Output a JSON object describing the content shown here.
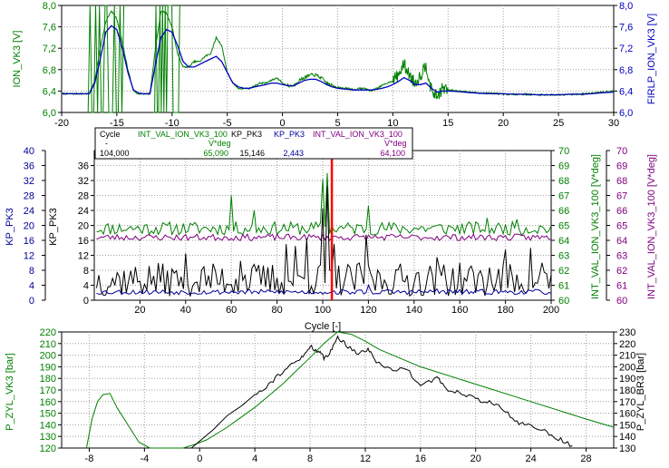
{
  "colors": {
    "ion": "#008000",
    "firlp": "#0000c0",
    "kp_blue": "#000099",
    "kp_black": "#000000",
    "int_val": "#800080",
    "cursor": "#ff0000",
    "p_zyl_vk3": "#008000",
    "p_zyl_br3": "#000000",
    "grid": "#a0a0a0"
  },
  "chart_data": [
    {
      "type": "line",
      "xlim": [
        -20,
        30
      ],
      "xticks": [
        -20,
        -15,
        -10,
        -5,
        0,
        5,
        10,
        15,
        20,
        25,
        30
      ],
      "left_axis": {
        "label": "ION_VK3 [V]",
        "ylim": [
          6.0,
          8.0
        ],
        "ticks": [
          "6,0",
          "6,4",
          "6,8",
          "7,2",
          "7,6",
          "8,0"
        ]
      },
      "right_axis": {
        "label": "FIRLP_ION_VK3 [V]",
        "ylim": [
          6.0,
          8.0
        ],
        "ticks": [
          "6,0",
          "6,4",
          "6,8",
          "7,2",
          "7,6",
          "8,0"
        ]
      },
      "grid": true,
      "series": [
        {
          "name": "ION_VK3",
          "axis": "left",
          "x": [
            -20,
            -17.5,
            -17,
            -16.5,
            -16,
            -15.5,
            -15,
            -14.5,
            -14,
            -13.5,
            -13,
            -12.5,
            -12,
            -11.5,
            -11,
            -10.5,
            -10,
            -9.5,
            -9,
            -8.5,
            -8,
            -7.5,
            -7,
            -6.5,
            -6,
            -5.5,
            -5,
            -4.5,
            -4,
            -3.5,
            -3,
            -2.5,
            -2,
            -1.5,
            -1,
            -0.5,
            0,
            0.5,
            1,
            1.5,
            2,
            2.5,
            3,
            3.5,
            4,
            4.5,
            5,
            5.5,
            6,
            6.5,
            7,
            7.5,
            8,
            8.5,
            9,
            9.5,
            10,
            10.5,
            11,
            11.5,
            12,
            12.5,
            13,
            13.5,
            14,
            14.5,
            15,
            16,
            17,
            18,
            19,
            20,
            21,
            22,
            23,
            24,
            25,
            26,
            27,
            28,
            29,
            30
          ],
          "y": [
            6.35,
            6.35,
            6.6,
            7.2,
            7.7,
            7.9,
            7.75,
            7.3,
            6.8,
            6.4,
            6.35,
            6.35,
            6.35,
            7.2,
            7.9,
            7.85,
            7.6,
            7.1,
            6.85,
            6.85,
            6.95,
            6.95,
            7.05,
            7.1,
            7.4,
            7.25,
            6.75,
            6.55,
            6.45,
            6.45,
            6.45,
            6.5,
            6.55,
            6.55,
            6.6,
            6.65,
            6.55,
            6.5,
            6.5,
            6.6,
            6.65,
            6.7,
            6.7,
            6.65,
            6.55,
            6.5,
            6.48,
            6.45,
            6.45,
            6.42,
            6.45,
            6.45,
            6.4,
            6.45,
            6.5,
            6.55,
            6.6,
            6.7,
            6.9,
            6.7,
            6.55,
            6.7,
            6.9,
            6.4,
            6.3,
            6.45,
            6.42,
            6.4,
            6.38,
            6.36,
            6.36,
            6.34,
            6.34,
            6.34,
            6.33,
            6.33,
            6.33,
            6.34,
            6.34,
            6.36,
            6.38,
            6.4
          ]
        },
        {
          "name": "FIRLP_ION_VK3",
          "axis": "right",
          "x": [
            -20,
            -17.5,
            -17,
            -16.5,
            -16,
            -15.5,
            -15,
            -14.5,
            -14,
            -13.5,
            -13,
            -12.5,
            -12,
            -11.5,
            -11,
            -10.5,
            -10,
            -9.5,
            -9,
            -8.5,
            -8,
            -7.5,
            -7,
            -6.5,
            -6,
            -5.5,
            -5,
            -4.5,
            -4,
            -3.5,
            -3,
            -2.5,
            -2,
            -1.5,
            -1,
            -0.5,
            0,
            0.5,
            1,
            1.5,
            2,
            2.5,
            3,
            3.5,
            4,
            4.5,
            5,
            5.5,
            6,
            6.5,
            7,
            7.5,
            8,
            8.5,
            9,
            9.5,
            10,
            10.5,
            11,
            11.5,
            12,
            12.5,
            13,
            13.5,
            14,
            14.5,
            15,
            16,
            17,
            18,
            19,
            20,
            21,
            22,
            23,
            24,
            25,
            26,
            27,
            28,
            29,
            30
          ],
          "y": [
            6.35,
            6.35,
            6.55,
            7.0,
            7.5,
            7.62,
            7.55,
            7.2,
            6.75,
            6.42,
            6.36,
            6.35,
            6.35,
            6.9,
            7.4,
            7.55,
            7.5,
            7.25,
            6.95,
            6.85,
            6.85,
            6.9,
            6.95,
            7.0,
            7.05,
            6.95,
            6.75,
            6.55,
            6.48,
            6.45,
            6.45,
            6.48,
            6.5,
            6.52,
            6.55,
            6.55,
            6.52,
            6.5,
            6.5,
            6.55,
            6.6,
            6.62,
            6.62,
            6.58,
            6.52,
            6.48,
            6.45,
            6.44,
            6.43,
            6.42,
            6.42,
            6.42,
            6.42,
            6.43,
            6.45,
            6.48,
            6.52,
            6.58,
            6.65,
            6.6,
            6.52,
            6.52,
            6.55,
            6.45,
            6.38,
            6.4,
            6.4,
            6.39,
            6.37,
            6.36,
            6.35,
            6.35,
            6.34,
            6.34,
            6.33,
            6.33,
            6.33,
            6.34,
            6.34,
            6.35,
            6.37,
            6.38
          ]
        }
      ]
    },
    {
      "type": "line",
      "xlabel": "Cycle [-]",
      "xlim": [
        0,
        200
      ],
      "xticks": [
        20,
        40,
        60,
        80,
        100,
        120,
        140,
        160,
        180,
        200
      ],
      "left_axes": [
        {
          "label": "KP_PK3",
          "ylim": [
            0,
            40
          ],
          "ticks": [
            0,
            4,
            8,
            12,
            16,
            20,
            24,
            28,
            32,
            36,
            40
          ]
        },
        {
          "label": "KP_PK3",
          "ylim": [
            0,
            40
          ],
          "ticks": [
            0,
            4,
            8,
            12,
            16,
            20,
            24,
            28,
            32,
            36
          ]
        }
      ],
      "right_axes": [
        {
          "label": "INT_VAL_ION_VK3_100 [V*deg]",
          "ylim": [
            60,
            70
          ],
          "ticks": [
            60,
            61,
            62,
            63,
            64,
            65,
            66,
            67,
            68,
            69,
            70
          ]
        },
        {
          "label": "INT_VAL_ION_VK3_100 [V*deg]",
          "ylim": [
            60,
            70
          ],
          "ticks": [
            60,
            61,
            62,
            63,
            64,
            65,
            66,
            67,
            68,
            69,
            70
          ]
        }
      ],
      "grid": true,
      "cursor_x": 104,
      "readout": {
        "headers": [
          "Cycle",
          "INT_VAL_ION_VK3_100",
          "KP_PK3",
          "KP_PK3",
          "INT_VAL_ION_VK3_100"
        ],
        "units": [
          "-",
          "V*deg",
          "",
          "",
          "V*deg"
        ],
        "values": [
          "104,000",
          "65,090",
          "15,146",
          "2,443",
          "64,100"
        ]
      },
      "series": [
        {
          "name": "INT_VAL_ION_VK3_100",
          "axis": "right",
          "pattern": {
            "base": 64.8,
            "amp": 0.45,
            "spikes": [
              [
                60,
                67.0
              ],
              [
                70,
                66.0
              ],
              [
                100,
                68.1
              ],
              [
                102,
                68.5
              ],
              [
                120,
                66.3
              ],
              [
                172,
                65.5
              ],
              [
                185,
                65.4
              ]
            ]
          }
        },
        {
          "name": "INT_VAL_ION_VK3_100",
          "axis": "right",
          "pattern": {
            "base": 64.2,
            "amp": 0.22,
            "spikes": []
          }
        },
        {
          "name": "KP_PK3",
          "axis": "left",
          "pattern": {
            "base": 5.5,
            "amp": 4.5,
            "spikes": [
              [
                40,
                12.5
              ],
              [
                64,
                10.5
              ],
              [
                84,
                15.0
              ],
              [
                88,
                14.5
              ],
              [
                93,
                16.5
              ],
              [
                100,
                24.5
              ],
              [
                102,
                30.5
              ],
              [
                105,
                15.0
              ],
              [
                119,
                17.5
              ],
              [
                150,
                11.5
              ],
              [
                153,
                9.5
              ],
              [
                180,
                13.5
              ],
              [
                191,
                14.0
              ],
              [
                196,
                10.0
              ]
            ]
          }
        },
        {
          "name": "KP_PK3",
          "axis": "left",
          "pattern": {
            "base": 2.2,
            "amp": 0.7,
            "spikes": [
              [
                120,
                4.0
              ],
              [
                150,
                3.0
              ]
            ]
          }
        }
      ]
    },
    {
      "type": "line",
      "xlim": [
        -10,
        30
      ],
      "xticks": [
        -8,
        -4,
        0,
        4,
        8,
        12,
        16,
        20,
        24,
        28
      ],
      "left_axis": {
        "label": "P_ZYL_VK3 [bar]",
        "ylim": [
          120,
          220
        ],
        "ticks": [
          120,
          130,
          140,
          150,
          160,
          170,
          180,
          190,
          200,
          210,
          220
        ]
      },
      "right_axis": {
        "label": "P_ZYL_BR3 [bar]",
        "ylim": [
          130,
          230
        ],
        "ticks": [
          130,
          140,
          150,
          160,
          170,
          180,
          190,
          200,
          210,
          220,
          230
        ]
      },
      "grid": true,
      "series": [
        {
          "name": "P_ZYL_VK3",
          "axis": "left",
          "x": [
            -8.2,
            -7.8,
            -7.4,
            -7.0,
            -6.5,
            -6.0,
            -5.2,
            -4.4,
            -3.6,
            -2.8,
            -2.0,
            -1.2,
            -0.4,
            0.5,
            2,
            4,
            6,
            8,
            9,
            10,
            11,
            12,
            13,
            16,
            20,
            24,
            28,
            30
          ],
          "y": [
            120,
            145,
            160,
            166,
            167,
            155,
            140,
            125,
            120,
            120,
            120,
            120,
            123,
            127,
            138,
            155,
            175,
            198,
            210,
            220,
            218,
            212,
            205,
            190,
            175,
            160,
            145,
            138
          ]
        },
        {
          "name": "P_ZYL_BR3",
          "axis": "right",
          "x": [
            -0.6,
            0,
            1,
            2,
            3,
            4,
            5,
            6,
            7,
            7.6,
            8,
            8.6,
            9,
            9.5,
            10,
            10.6,
            11.5,
            12.2,
            12.8,
            14,
            14.8,
            16,
            17.2,
            18,
            19,
            20,
            21,
            22,
            23,
            23.8,
            25,
            26,
            27
          ],
          "y": [
            130,
            136,
            146,
            158,
            166,
            176,
            185,
            196,
            204,
            210,
            218,
            213,
            208,
            213,
            226,
            219,
            212,
            215,
            205,
            196,
            200,
            185,
            190,
            180,
            178,
            172,
            170,
            163,
            152,
            150,
            145,
            138,
            132
          ]
        }
      ]
    }
  ]
}
